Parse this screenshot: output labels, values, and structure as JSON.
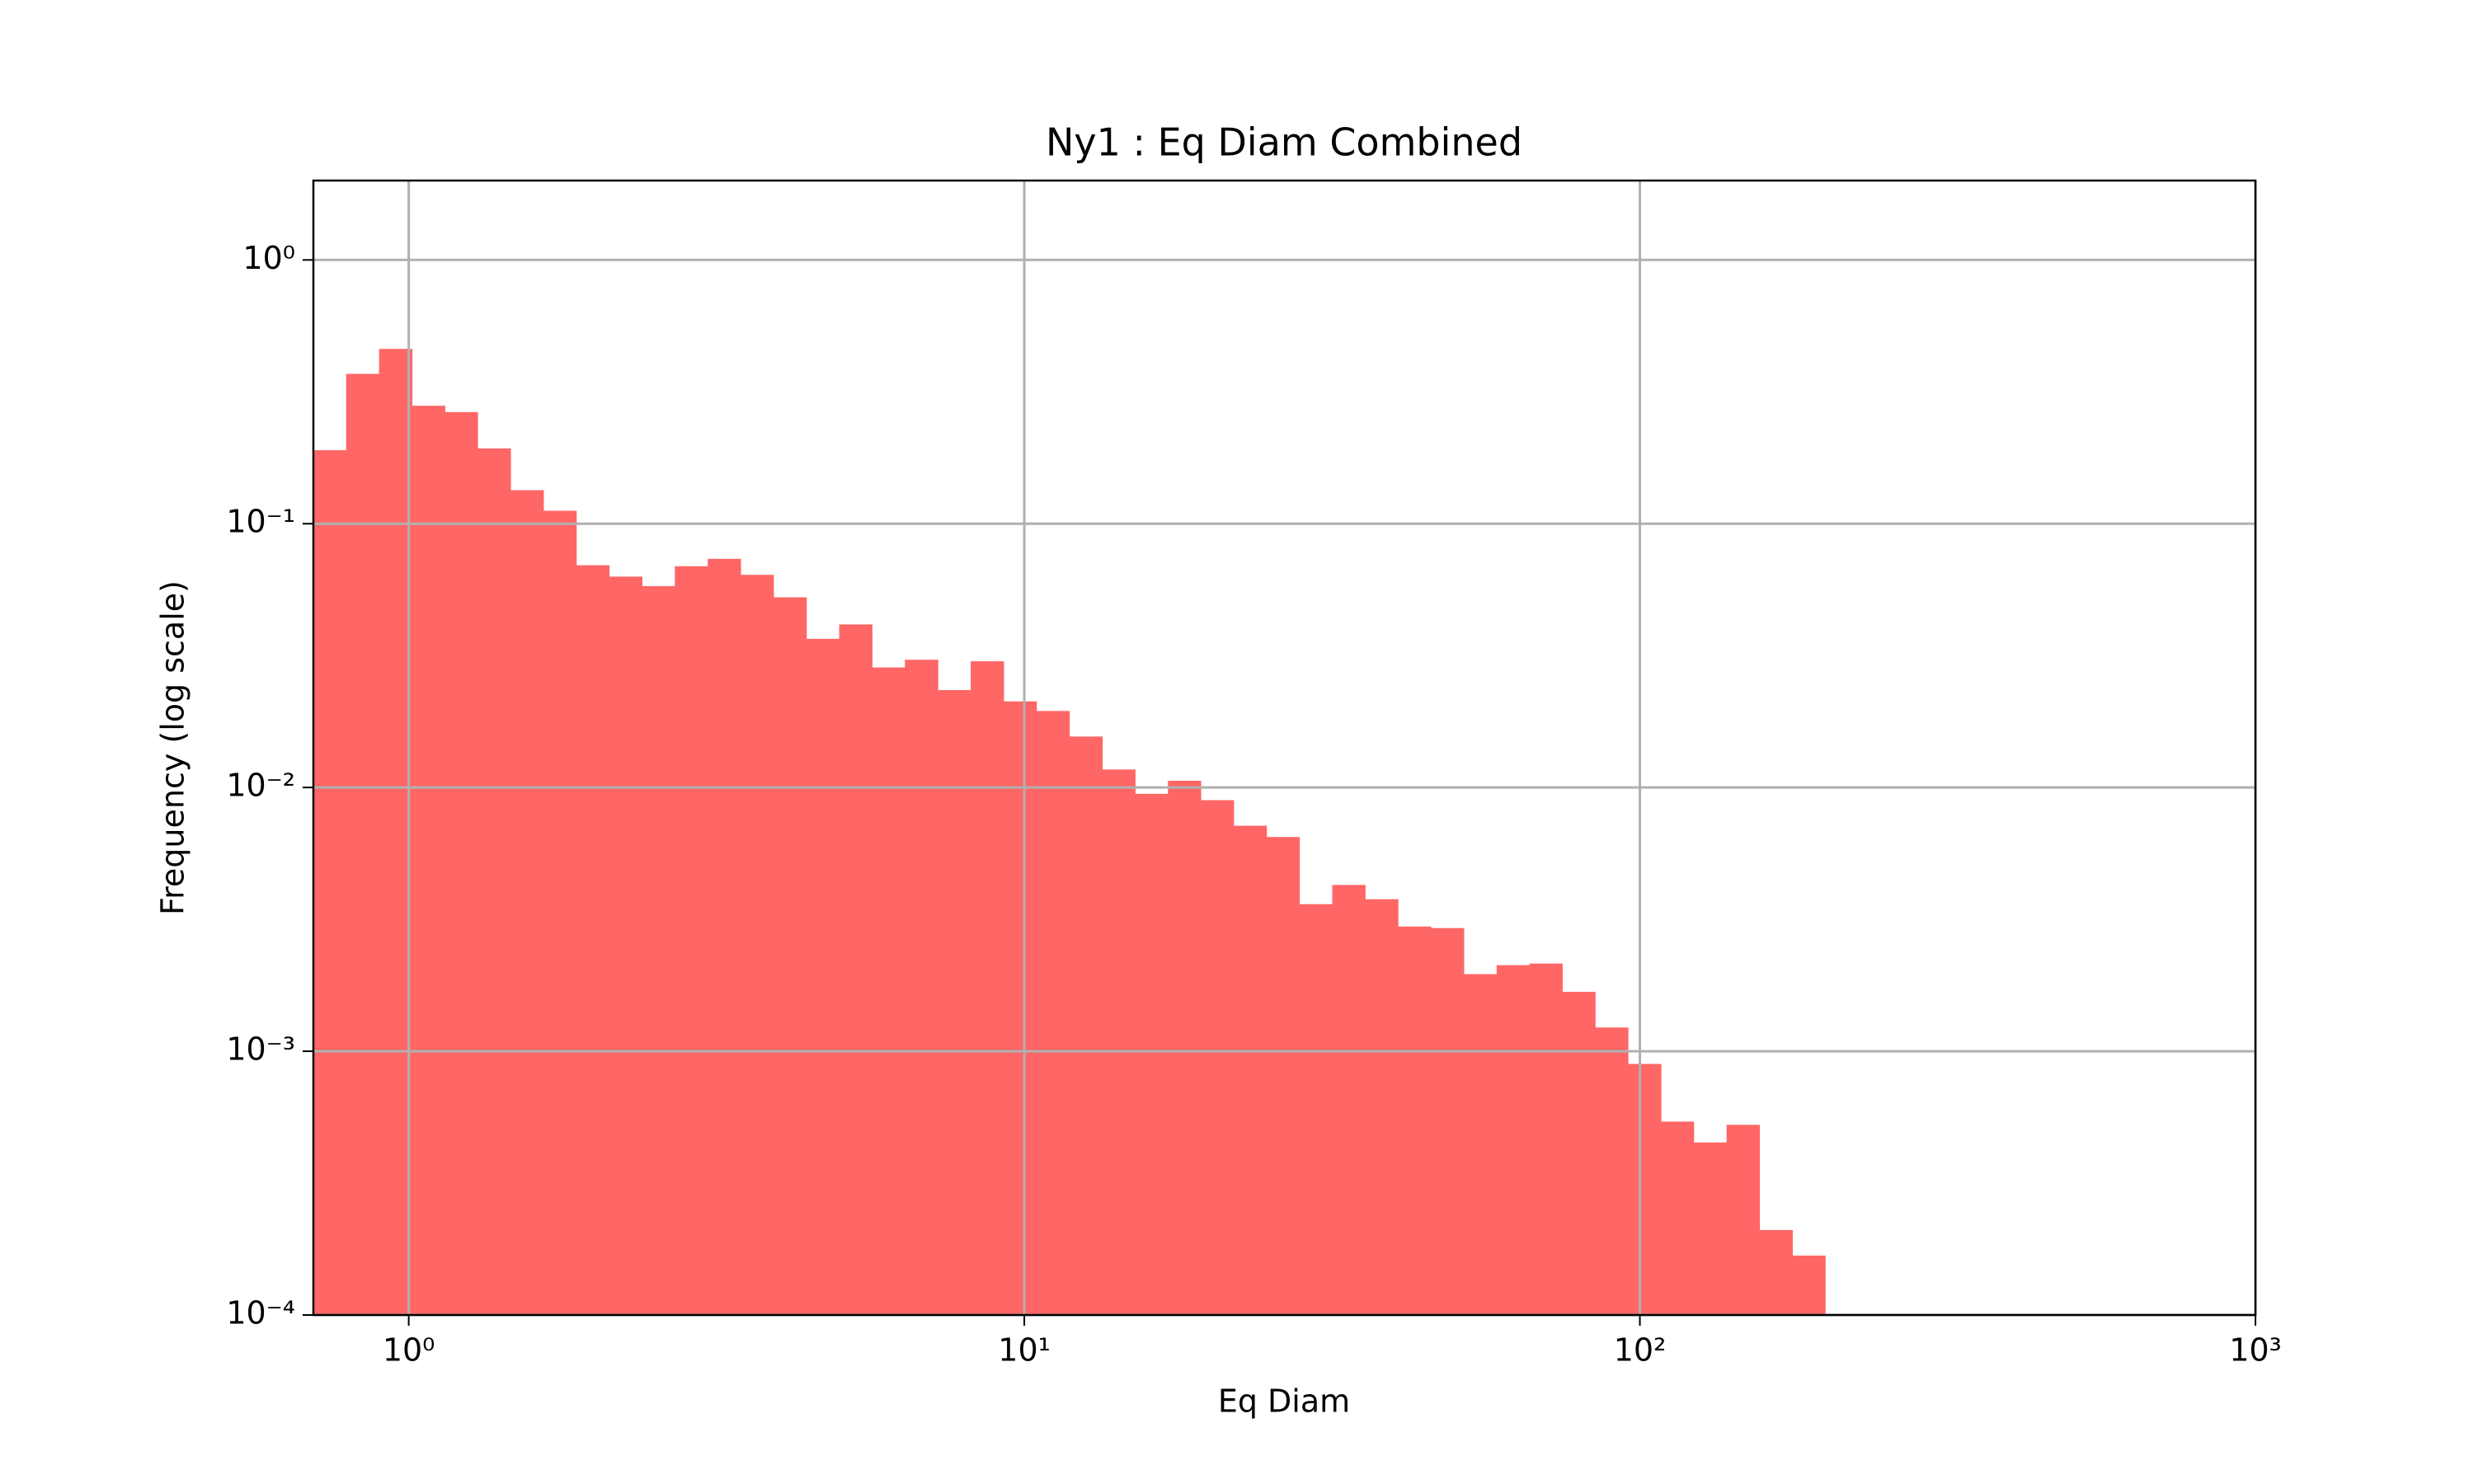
{
  "chart_data": {
    "type": "histogram",
    "title": "Ny1 : Eq Diam Combined",
    "xlabel": "Eq Diam",
    "ylabel": "Frequency (log scale)",
    "xscale": "log",
    "yscale": "log",
    "grid": true,
    "color": "#ff6666",
    "xlim": [
      0.7,
      1000
    ],
    "ylim": [
      0.0001,
      2
    ],
    "xticks": [
      {
        "value": 1,
        "label": "10⁰"
      },
      {
        "value": 10,
        "label": "10¹"
      },
      {
        "value": 100,
        "label": "10²"
      },
      {
        "value": 1000,
        "label": "10³"
      }
    ],
    "yticks": [
      {
        "value": 0.0001,
        "label": "10⁻⁴"
      },
      {
        "value": 0.001,
        "label": "10⁻³"
      },
      {
        "value": 0.01,
        "label": "10⁻²"
      },
      {
        "value": 0.1,
        "label": "10⁻¹"
      },
      {
        "value": 1,
        "label": "10⁰"
      }
    ],
    "bins": [
      0.7,
      0.7915,
      0.895,
      1.0123,
      1.1447,
      1.294,
      1.4636,
      1.655,
      1.8714,
      2.1162,
      2.393,
      2.706,
      3.06,
      3.46,
      3.913,
      4.426,
      5.004,
      5.658,
      6.398,
      7.236,
      8.183,
      9.254,
      10.464,
      11.834,
      13.383,
      15.134,
      17.115,
      19.35,
      21.88,
      24.74,
      27.98,
      31.64,
      35.78,
      40.46,
      45.76,
      51.75,
      58.52,
      66.15,
      74.81,
      84.6,
      95.65,
      108.2,
      122.3,
      138.3,
      156.4,
      176.9,
      200
    ],
    "values": [
      0.19,
      0.37,
      0.46,
      0.28,
      0.265,
      0.193,
      0.134,
      0.112,
      0.0696,
      0.063,
      0.058,
      0.069,
      0.0736,
      0.064,
      0.0526,
      0.0366,
      0.0415,
      0.0285,
      0.0305,
      0.0234,
      0.0301,
      0.0212,
      0.0195,
      0.0156,
      0.0117,
      0.00946,
      0.0106,
      0.00895,
      0.00716,
      0.00649,
      0.00361,
      0.00427,
      0.00377,
      0.00297,
      0.00293,
      0.00196,
      0.00212,
      0.00215,
      0.00168,
      0.00123,
      0.000895,
      0.000541,
      0.000451,
      0.000526,
      0.00021,
      0.000168
    ]
  }
}
